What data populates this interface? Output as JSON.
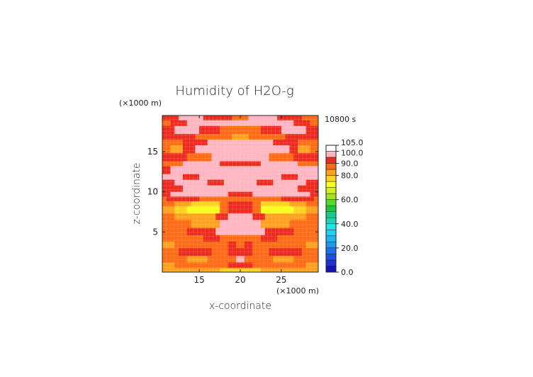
{
  "chart_data": {
    "type": "heatmap",
    "title": "Humidity of H2O-g",
    "xlabel": "x-coordinate",
    "ylabel": "z-coordinate",
    "x_unit": "(×1000 m)",
    "y_unit": "(×1000 m)",
    "time_label": "10800 s",
    "xlim": [
      10.5,
      29.5
    ],
    "ylim": [
      0,
      19.5
    ],
    "x_ticks": [
      {
        "value": 15,
        "label": "15"
      },
      {
        "value": 20,
        "label": "20"
      },
      {
        "value": 25,
        "label": "25"
      }
    ],
    "y_ticks": [
      {
        "value": 5,
        "label": "5"
      },
      {
        "value": 10,
        "label": "10"
      },
      {
        "value": 15,
        "label": "15"
      }
    ],
    "colorbar": {
      "min": 0,
      "max": 105,
      "tick_labels": [
        {
          "value": 105,
          "label": "105.0"
        },
        {
          "value": 100,
          "label": "100.0"
        },
        {
          "value": 90,
          "label": "90.0"
        },
        {
          "value": 80,
          "label": "80.0"
        },
        {
          "value": 60,
          "label": "60.0"
        },
        {
          "value": 40,
          "label": "40.0"
        },
        {
          "value": 20,
          "label": "20.0"
        },
        {
          "value": 0,
          "label": "0.0"
        }
      ],
      "bands": [
        {
          "from": 100,
          "to": 105,
          "color": "#ffffff"
        },
        {
          "from": 95,
          "to": 100,
          "color": "#ffb6c1"
        },
        {
          "from": 90,
          "to": 95,
          "color": "#ee2a1e"
        },
        {
          "from": 85,
          "to": 90,
          "color": "#ff6a14"
        },
        {
          "from": 80,
          "to": 85,
          "color": "#ffa01e"
        },
        {
          "from": 75,
          "to": 80,
          "color": "#ffd21e"
        },
        {
          "from": 70,
          "to": 75,
          "color": "#ffff1e"
        },
        {
          "from": 65,
          "to": 70,
          "color": "#d2f01e"
        },
        {
          "from": 60,
          "to": 65,
          "color": "#a0e61e"
        },
        {
          "from": 55,
          "to": 60,
          "color": "#50dc28"
        },
        {
          "from": 50,
          "to": 55,
          "color": "#1ec83c"
        },
        {
          "from": 45,
          "to": 50,
          "color": "#1ec88c"
        },
        {
          "from": 40,
          "to": 45,
          "color": "#1ed2b4"
        },
        {
          "from": 35,
          "to": 40,
          "color": "#1ee6e6"
        },
        {
          "from": 30,
          "to": 35,
          "color": "#1ed2f0"
        },
        {
          "from": 25,
          "to": 30,
          "color": "#1eb4f0"
        },
        {
          "from": 20,
          "to": 25,
          "color": "#1e96f0"
        },
        {
          "from": 15,
          "to": 20,
          "color": "#1e6ef0"
        },
        {
          "from": 10,
          "to": 15,
          "color": "#1e50e6"
        },
        {
          "from": 5,
          "to": 10,
          "color": "#1e32d2"
        },
        {
          "from": 0,
          "to": 5,
          "color": "#1414b4"
        }
      ]
    },
    "field_bands": [
      {
        "y": [
          18.9,
          19.5
        ],
        "regions": [
          [
            10.5,
            12.5,
            90
          ],
          [
            12.5,
            15.5,
            95
          ],
          [
            15.5,
            19.0,
            90
          ],
          [
            19.0,
            21.0,
            85
          ],
          [
            21.0,
            24.5,
            95
          ],
          [
            24.5,
            27.5,
            90
          ],
          [
            27.5,
            29.5,
            85
          ]
        ]
      },
      {
        "y": [
          18.2,
          18.9
        ],
        "regions": [
          [
            10.5,
            11.5,
            85
          ],
          [
            11.5,
            13.5,
            90
          ],
          [
            13.5,
            26.5,
            95
          ],
          [
            26.5,
            28.5,
            90
          ],
          [
            28.5,
            29.5,
            85
          ]
        ]
      },
      {
        "y": [
          17.2,
          18.2
        ],
        "regions": [
          [
            10.5,
            12.0,
            90
          ],
          [
            12.0,
            15.0,
            95
          ],
          [
            15.0,
            17.5,
            90
          ],
          [
            17.5,
            22.5,
            85
          ],
          [
            22.5,
            25.0,
            90
          ],
          [
            25.0,
            28.0,
            95
          ],
          [
            28.0,
            29.5,
            90
          ]
        ]
      },
      {
        "y": [
          16.5,
          17.2
        ],
        "regions": [
          [
            10.5,
            14.5,
            90
          ],
          [
            14.5,
            19.0,
            85
          ],
          [
            19.0,
            21.0,
            80
          ],
          [
            21.0,
            25.5,
            85
          ],
          [
            25.5,
            29.5,
            90
          ]
        ]
      },
      {
        "y": [
          15.8,
          16.5
        ],
        "regions": [
          [
            10.5,
            13.0,
            85
          ],
          [
            13.0,
            16.0,
            90
          ],
          [
            16.0,
            24.0,
            95
          ],
          [
            24.0,
            27.0,
            90
          ],
          [
            27.0,
            29.5,
            85
          ]
        ]
      },
      {
        "y": [
          14.8,
          15.8
        ],
        "regions": [
          [
            10.5,
            11.5,
            85
          ],
          [
            11.5,
            13.0,
            80
          ],
          [
            13.0,
            14.5,
            90
          ],
          [
            14.5,
            26.0,
            95
          ],
          [
            26.0,
            27.0,
            90
          ],
          [
            27.0,
            28.5,
            80
          ],
          [
            28.5,
            29.5,
            85
          ]
        ]
      },
      {
        "y": [
          13.8,
          14.8
        ],
        "regions": [
          [
            10.5,
            13.5,
            90
          ],
          [
            13.5,
            16.5,
            85
          ],
          [
            16.5,
            23.5,
            95
          ],
          [
            23.5,
            26.5,
            85
          ],
          [
            26.5,
            29.5,
            90
          ]
        ]
      },
      {
        "y": [
          13.2,
          13.8
        ],
        "regions": [
          [
            10.5,
            13.0,
            85
          ],
          [
            13.0,
            17.5,
            95
          ],
          [
            17.5,
            22.5,
            90
          ],
          [
            22.5,
            27.0,
            95
          ],
          [
            27.0,
            29.5,
            85
          ]
        ]
      },
      {
        "y": [
          12.2,
          13.2
        ],
        "regions": [
          [
            10.5,
            11.5,
            90
          ],
          [
            11.5,
            29.5,
            95
          ]
        ]
      },
      {
        "y": [
          11.5,
          12.2
        ],
        "regions": [
          [
            10.5,
            13.0,
            95
          ],
          [
            13.0,
            15.0,
            90
          ],
          [
            15.0,
            25.0,
            95
          ],
          [
            25.0,
            27.0,
            90
          ],
          [
            27.0,
            29.5,
            95
          ]
        ]
      },
      {
        "y": [
          10.8,
          11.5
        ],
        "regions": [
          [
            10.5,
            12.0,
            90
          ],
          [
            12.0,
            16.0,
            95
          ],
          [
            16.0,
            18.0,
            90
          ],
          [
            18.0,
            22.0,
            95
          ],
          [
            22.0,
            24.0,
            90
          ],
          [
            24.0,
            28.0,
            95
          ],
          [
            28.0,
            29.5,
            90
          ]
        ]
      },
      {
        "y": [
          10.0,
          10.8
        ],
        "regions": [
          [
            10.5,
            13.0,
            90
          ],
          [
            13.0,
            27.0,
            95
          ],
          [
            27.0,
            29.5,
            90
          ]
        ]
      },
      {
        "y": [
          9.4,
          10.0
        ],
        "regions": [
          [
            10.5,
            11.5,
            90
          ],
          [
            11.5,
            18.5,
            95
          ],
          [
            18.5,
            21.5,
            90
          ],
          [
            21.5,
            28.5,
            95
          ],
          [
            28.5,
            29.5,
            90
          ]
        ]
      },
      {
        "y": [
          8.8,
          9.4
        ],
        "regions": [
          [
            10.5,
            11.0,
            85
          ],
          [
            11.0,
            15.0,
            90
          ],
          [
            15.0,
            25.0,
            85
          ],
          [
            25.0,
            29.0,
            90
          ],
          [
            29.0,
            29.5,
            85
          ]
        ]
      },
      {
        "y": [
          8.2,
          8.8
        ],
        "regions": [
          [
            10.5,
            12.0,
            85
          ],
          [
            12.0,
            14.0,
            80
          ],
          [
            14.0,
            17.5,
            75
          ],
          [
            17.5,
            18.5,
            85
          ],
          [
            18.5,
            21.5,
            90
          ],
          [
            21.5,
            22.5,
            85
          ],
          [
            22.5,
            26.0,
            75
          ],
          [
            26.0,
            28.0,
            80
          ],
          [
            28.0,
            29.5,
            85
          ]
        ]
      },
      {
        "y": [
          7.3,
          8.2
        ],
        "regions": [
          [
            10.5,
            12.0,
            80
          ],
          [
            12.0,
            13.5,
            75
          ],
          [
            13.5,
            17.5,
            70
          ],
          [
            17.5,
            18.5,
            85
          ],
          [
            18.5,
            21.5,
            90
          ],
          [
            21.5,
            22.5,
            85
          ],
          [
            22.5,
            26.5,
            70
          ],
          [
            26.5,
            28.0,
            75
          ],
          [
            28.0,
            29.5,
            80
          ]
        ]
      },
      {
        "y": [
          6.5,
          7.3
        ],
        "regions": [
          [
            10.5,
            12.0,
            85
          ],
          [
            12.0,
            17.0,
            80
          ],
          [
            17.0,
            18.5,
            90
          ],
          [
            18.5,
            21.5,
            95
          ],
          [
            21.5,
            23.0,
            90
          ],
          [
            23.0,
            28.0,
            80
          ],
          [
            28.0,
            29.5,
            85
          ]
        ]
      },
      {
        "y": [
          5.5,
          6.5
        ],
        "regions": [
          [
            10.5,
            14.0,
            85
          ],
          [
            14.0,
            17.5,
            80
          ],
          [
            17.5,
            22.5,
            95
          ],
          [
            22.5,
            26.0,
            80
          ],
          [
            26.0,
            29.5,
            85
          ]
        ]
      },
      {
        "y": [
          4.6,
          5.5
        ],
        "regions": [
          [
            10.5,
            13.5,
            85
          ],
          [
            13.5,
            17.0,
            90
          ],
          [
            17.0,
            23.0,
            95
          ],
          [
            23.0,
            26.5,
            90
          ],
          [
            26.5,
            29.5,
            85
          ]
        ]
      },
      {
        "y": [
          3.8,
          4.6
        ],
        "regions": [
          [
            10.5,
            15.5,
            85
          ],
          [
            15.5,
            17.5,
            90
          ],
          [
            17.5,
            22.5,
            85
          ],
          [
            22.5,
            24.5,
            90
          ],
          [
            24.5,
            29.5,
            85
          ]
        ]
      },
      {
        "y": [
          3.0,
          3.8
        ],
        "regions": [
          [
            10.5,
            12.0,
            80
          ],
          [
            12.0,
            18.5,
            85
          ],
          [
            18.5,
            19.5,
            90
          ],
          [
            19.5,
            20.5,
            85
          ],
          [
            20.5,
            21.5,
            90
          ],
          [
            21.5,
            28.0,
            85
          ],
          [
            28.0,
            29.5,
            80
          ]
        ]
      },
      {
        "y": [
          2.0,
          3.0
        ],
        "regions": [
          [
            10.5,
            12.5,
            85
          ],
          [
            12.5,
            16.5,
            90
          ],
          [
            16.5,
            18.5,
            85
          ],
          [
            18.5,
            21.5,
            90
          ],
          [
            21.5,
            23.5,
            85
          ],
          [
            23.5,
            27.5,
            90
          ],
          [
            27.5,
            29.5,
            85
          ]
        ]
      },
      {
        "y": [
          1.2,
          2.0
        ],
        "regions": [
          [
            10.5,
            13.5,
            85
          ],
          [
            13.5,
            16.0,
            80
          ],
          [
            16.0,
            19.5,
            85
          ],
          [
            19.5,
            20.5,
            95
          ],
          [
            20.5,
            24.0,
            85
          ],
          [
            24.0,
            26.5,
            80
          ],
          [
            26.5,
            29.5,
            85
          ]
        ]
      },
      {
        "y": [
          0.5,
          1.2
        ],
        "regions": [
          [
            10.5,
            12.0,
            80
          ],
          [
            12.0,
            18.5,
            85
          ],
          [
            18.5,
            21.5,
            90
          ],
          [
            21.5,
            28.0,
            85
          ],
          [
            28.0,
            29.5,
            80
          ]
        ]
      },
      {
        "y": [
          0.0,
          0.5
        ],
        "regions": [
          [
            10.5,
            17.5,
            80
          ],
          [
            17.5,
            22.5,
            75
          ],
          [
            22.5,
            29.5,
            80
          ]
        ]
      }
    ]
  }
}
